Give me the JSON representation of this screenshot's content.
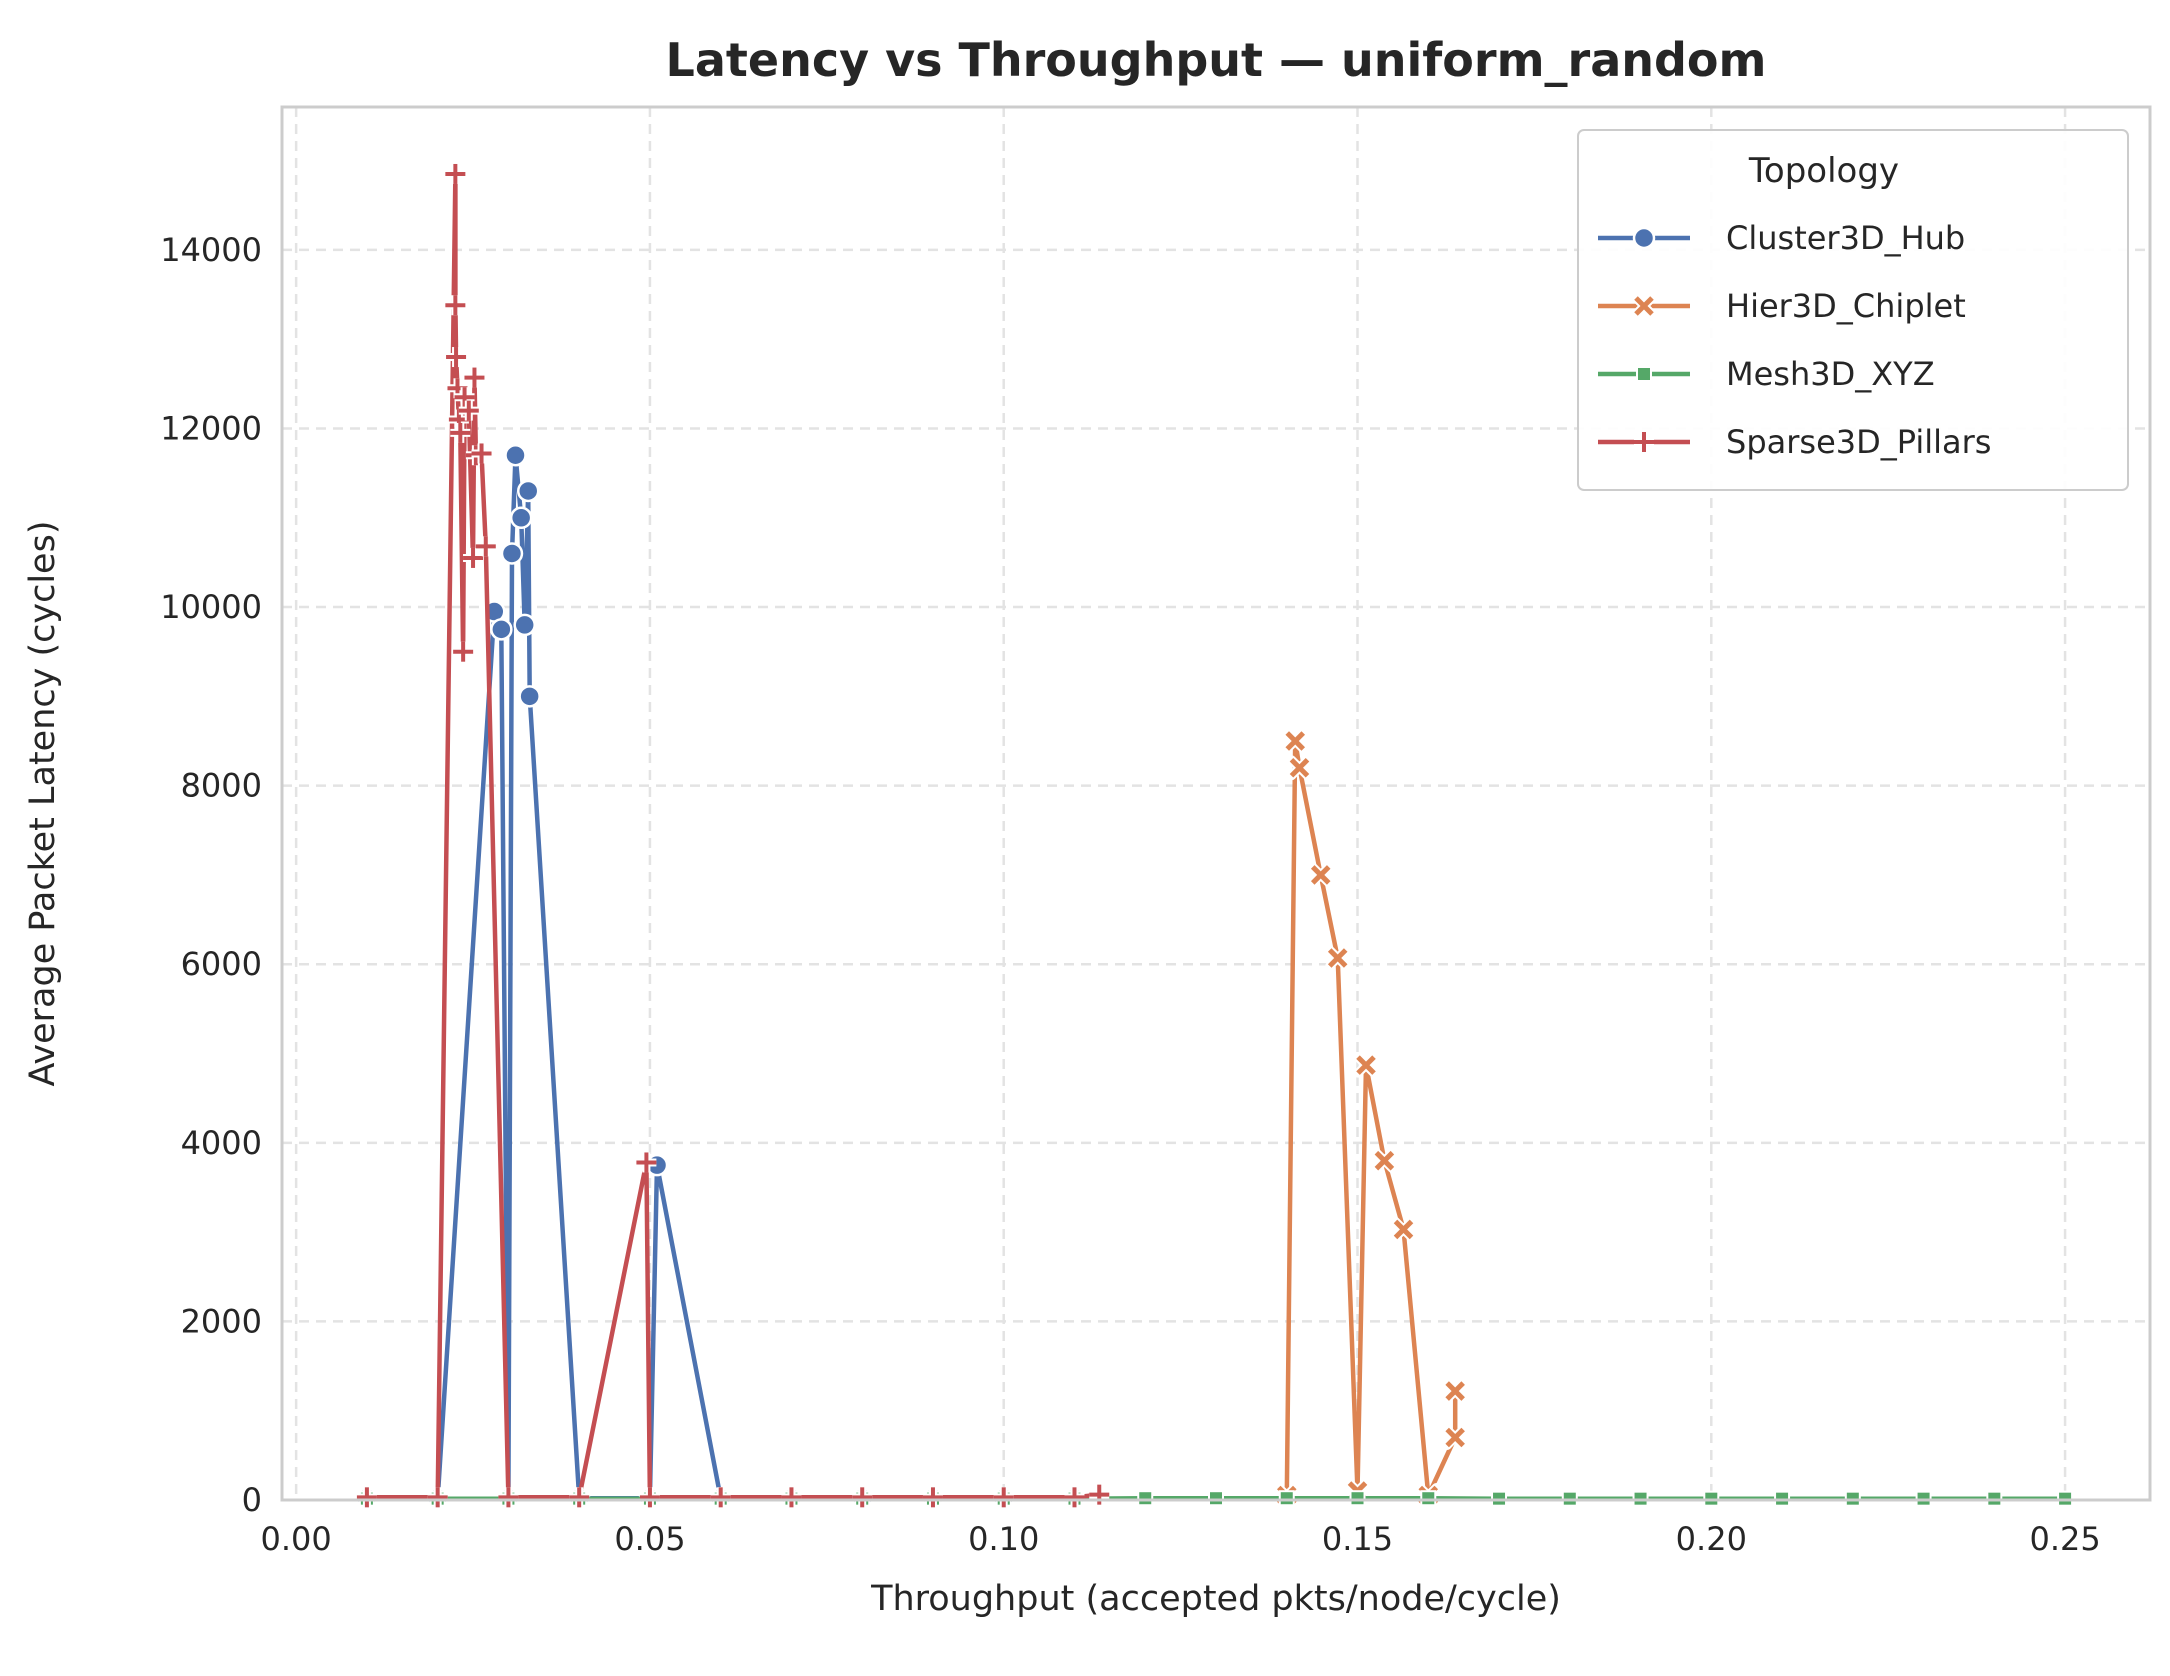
{
  "chart_data": {
    "type": "line",
    "title": "Latency vs Throughput — uniform_random",
    "xlabel": "Throughput (accepted pkts/node/cycle)",
    "ylabel": "Average Packet Latency (cycles)",
    "xlim": [
      -0.002,
      0.262
    ],
    "ylim": [
      0,
      15600
    ],
    "x_ticks": [
      "0.00",
      "0.05",
      "0.10",
      "0.15",
      "0.20",
      "0.25"
    ],
    "x_tick_values": [
      0,
      0.05,
      0.1,
      0.15,
      0.2,
      0.25
    ],
    "y_ticks": [
      "0",
      "2000",
      "4000",
      "6000",
      "8000",
      "10000",
      "12000",
      "14000"
    ],
    "y_tick_values": [
      0,
      2000,
      4000,
      6000,
      8000,
      10000,
      12000,
      14000
    ],
    "grid": true,
    "legend": {
      "title": "Topology",
      "position": "top-right"
    },
    "series": [
      {
        "name": "Cluster3D_Hub",
        "color": "#4c72b0",
        "marker": "circle",
        "points": [
          [
            0.01,
            20
          ],
          [
            0.02,
            20
          ],
          [
            0.028,
            9950
          ],
          [
            0.029,
            9750
          ],
          [
            0.03,
            20
          ],
          [
            0.0305,
            10600
          ],
          [
            0.031,
            11700
          ],
          [
            0.0318,
            11000
          ],
          [
            0.0323,
            9800
          ],
          [
            0.0328,
            11300
          ],
          [
            0.033,
            9000
          ],
          [
            0.04,
            20
          ],
          [
            0.05,
            20
          ],
          [
            0.051,
            3750
          ],
          [
            0.06,
            20
          ],
          [
            0.07,
            20
          ],
          [
            0.08,
            20
          ],
          [
            0.09,
            20
          ],
          [
            0.1,
            20
          ],
          [
            0.11,
            20
          ]
        ]
      },
      {
        "name": "Hier3D_Chiplet",
        "color": "#dd8452",
        "marker": "x",
        "points": [
          [
            0.14,
            50
          ],
          [
            0.1412,
            8500
          ],
          [
            0.1418,
            8200
          ],
          [
            0.1448,
            7000
          ],
          [
            0.1472,
            6070
          ],
          [
            0.15,
            100
          ],
          [
            0.1512,
            4870
          ],
          [
            0.1538,
            3800
          ],
          [
            0.1565,
            3030
          ],
          [
            0.16,
            50
          ],
          [
            0.1638,
            700
          ],
          [
            0.1638,
            1220
          ]
        ]
      },
      {
        "name": "Mesh3D_XYZ",
        "color": "#55a868",
        "marker": "square",
        "points": [
          [
            0.01,
            15
          ],
          [
            0.02,
            15
          ],
          [
            0.03,
            15
          ],
          [
            0.04,
            15
          ],
          [
            0.05,
            15
          ],
          [
            0.06,
            15
          ],
          [
            0.07,
            15
          ],
          [
            0.08,
            15
          ],
          [
            0.09,
            15
          ],
          [
            0.1,
            15
          ],
          [
            0.11,
            15
          ],
          [
            0.12,
            20
          ],
          [
            0.13,
            20
          ],
          [
            0.14,
            20
          ],
          [
            0.15,
            20
          ],
          [
            0.16,
            20
          ],
          [
            0.17,
            15
          ],
          [
            0.18,
            15
          ],
          [
            0.19,
            15
          ],
          [
            0.2,
            15
          ],
          [
            0.21,
            15
          ],
          [
            0.22,
            15
          ],
          [
            0.23,
            15
          ],
          [
            0.24,
            15
          ],
          [
            0.25,
            15
          ]
        ]
      },
      {
        "name": "Sparse3D_Pillars",
        "color": "#c44e52",
        "marker": "plus",
        "points": [
          [
            0.01,
            30
          ],
          [
            0.02,
            30
          ],
          [
            0.0225,
            14850
          ],
          [
            0.0225,
            13380
          ],
          [
            0.0226,
            12800
          ],
          [
            0.0228,
            12450
          ],
          [
            0.023,
            12100
          ],
          [
            0.0232,
            11950
          ],
          [
            0.0236,
            9500
          ],
          [
            0.0238,
            12350
          ],
          [
            0.0244,
            12200
          ],
          [
            0.025,
            10550
          ],
          [
            0.0252,
            12570
          ],
          [
            0.0254,
            11700
          ],
          [
            0.0262,
            11720
          ],
          [
            0.0268,
            10680
          ],
          [
            0.03,
            30
          ],
          [
            0.04,
            30
          ],
          [
            0.0495,
            3780
          ],
          [
            0.05,
            30
          ],
          [
            0.06,
            30
          ],
          [
            0.07,
            30
          ],
          [
            0.08,
            30
          ],
          [
            0.09,
            30
          ],
          [
            0.1,
            30
          ],
          [
            0.11,
            30
          ],
          [
            0.1135,
            60
          ]
        ]
      }
    ]
  }
}
